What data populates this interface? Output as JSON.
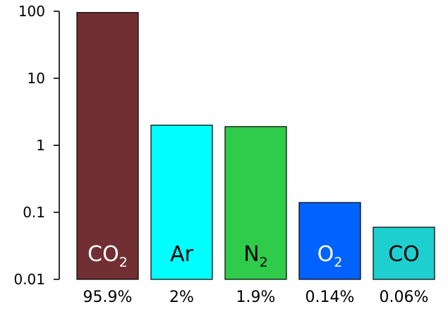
{
  "chart_data": {
    "type": "bar",
    "scale": "log",
    "ylim": [
      0.01,
      100
    ],
    "yticks": [
      {
        "value": 100,
        "label": "100"
      },
      {
        "value": 10,
        "label": "10"
      },
      {
        "value": 1,
        "label": "1"
      },
      {
        "value": 0.1,
        "label": "0.1"
      },
      {
        "value": 0.01,
        "label": "0.01"
      }
    ],
    "bars": [
      {
        "label": "CO",
        "sub": "2",
        "value": 95.9,
        "pct_label": "95.9%",
        "color": "#722f33",
        "text_color": "#ffffff"
      },
      {
        "label": "Ar",
        "sub": "",
        "value": 2,
        "pct_label": "2%",
        "color": "#00ffff",
        "text_color": "#000000"
      },
      {
        "label": "N",
        "sub": "2",
        "value": 1.9,
        "pct_label": "1.9%",
        "color": "#2ecc4a",
        "text_color": "#000000"
      },
      {
        "label": "O",
        "sub": "2",
        "value": 0.14,
        "pct_label": "0.14%",
        "color": "#0062ff",
        "text_color": "#ffffff"
      },
      {
        "label": "CO",
        "sub": "",
        "value": 0.06,
        "pct_label": "0.06%",
        "color": "#1dcfcf",
        "text_color": "#000000"
      }
    ],
    "grid": false,
    "legend": "none"
  }
}
